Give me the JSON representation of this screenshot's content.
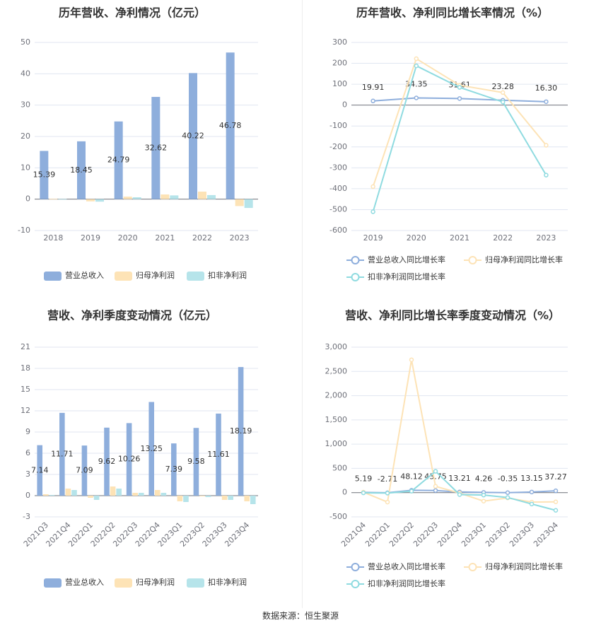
{
  "source_label": "数据来源：恒生聚源",
  "chart_data": [
    {
      "type": "bar",
      "title": "历年营收、净利情况（亿元）",
      "categories": [
        "2018",
        "2019",
        "2020",
        "2021",
        "2022",
        "2023"
      ],
      "ylim": [
        -10,
        50
      ],
      "yticks": [
        -10,
        0,
        10,
        20,
        30,
        40,
        50
      ],
      "ytick_labels": [
        "-10",
        "0",
        "10",
        "20",
        "30",
        "40",
        "50"
      ],
      "legend_position": "bottom",
      "grid": true,
      "series": [
        {
          "name": "营业总收入",
          "color": "#8eaedc",
          "values": [
            15.39,
            18.45,
            24.79,
            32.62,
            40.22,
            46.78
          ],
          "labels": [
            "15.39",
            "18.45",
            "24.79",
            "32.62",
            "40.22",
            "46.78"
          ]
        },
        {
          "name": "归母净利润",
          "color": "#fde3b6",
          "values": [
            0.1,
            -0.7,
            0.8,
            1.5,
            2.4,
            -2.2
          ]
        },
        {
          "name": "扣非净利润",
          "color": "#b6e4ea",
          "values": [
            0.05,
            -0.8,
            0.6,
            1.2,
            1.3,
            -2.8
          ]
        }
      ]
    },
    {
      "type": "line",
      "title": "历年营收、净利同比增长率情况（%）",
      "categories": [
        "2019",
        "2020",
        "2021",
        "2022",
        "2023"
      ],
      "ylim": [
        -600,
        300
      ],
      "yticks": [
        -600,
        -500,
        -400,
        -300,
        -200,
        -100,
        0,
        100,
        200,
        300
      ],
      "ytick_labels": [
        "-600",
        "-500",
        "-400",
        "-300",
        "-200",
        "-100",
        "0",
        "100",
        "200",
        "300"
      ],
      "legend_position": "bottom",
      "grid": true,
      "series": [
        {
          "name": "营业总收入同比增长率",
          "color": "#8eaedc",
          "values": [
            19.91,
            34.35,
            31.61,
            23.28,
            16.3
          ],
          "labels": [
            "19.91",
            "34.35",
            "31.61",
            "23.28",
            "16.30"
          ]
        },
        {
          "name": "归母净利润同比增长率",
          "color": "#fde3b6",
          "values": [
            -390,
            222,
            95,
            60,
            -192
          ]
        },
        {
          "name": "扣非净利润同比增长率",
          "color": "#8fdbe0",
          "values": [
            -510,
            188,
            85,
            15,
            -335
          ]
        }
      ]
    },
    {
      "type": "bar",
      "title": "营收、净利季度变动情况（亿元）",
      "categories": [
        "2021Q3",
        "2021Q4",
        "2022Q1",
        "2022Q2",
        "2022Q3",
        "2022Q4",
        "2023Q1",
        "2023Q2",
        "2023Q3",
        "2023Q4"
      ],
      "ylim": [
        -3,
        21
      ],
      "yticks": [
        -3,
        0,
        3,
        6,
        9,
        12,
        15,
        18,
        21
      ],
      "ytick_labels": [
        "-3",
        "0",
        "3",
        "6",
        "9",
        "12",
        "15",
        "18",
        "21"
      ],
      "legend_position": "bottom",
      "grid": true,
      "series": [
        {
          "name": "营业总收入",
          "color": "#8eaedc",
          "values": [
            7.14,
            11.71,
            7.09,
            9.62,
            10.26,
            13.25,
            7.39,
            9.58,
            11.61,
            18.19
          ],
          "labels": [
            "7.14",
            "11.71",
            "7.09",
            "9.62",
            "10.26",
            "13.25",
            "7.39",
            "9.58",
            "11.61",
            "18.19"
          ]
        },
        {
          "name": "归母净利润",
          "color": "#fde3b6",
          "values": [
            0.2,
            1.0,
            -0.3,
            1.3,
            0.4,
            0.8,
            -0.8,
            -0.1,
            -0.6,
            -0.8
          ]
        },
        {
          "name": "扣非净利润",
          "color": "#b6e4ea",
          "values": [
            0.1,
            0.8,
            -0.6,
            1.0,
            0.4,
            0.4,
            -0.9,
            -0.2,
            -0.6,
            -1.2
          ]
        }
      ]
    },
    {
      "type": "line",
      "title": "营收、净利同比增长率季度变动情况（%）",
      "categories": [
        "2021Q4",
        "2022Q1",
        "2022Q2",
        "2022Q3",
        "2022Q4",
        "2023Q1",
        "2023Q2",
        "2023Q3",
        "2023Q4"
      ],
      "ylim": [
        -500,
        3000
      ],
      "yticks": [
        -500,
        0,
        500,
        1000,
        1500,
        2000,
        2500,
        3000
      ],
      "ytick_labels": [
        "-500",
        "0",
        "500",
        "1,000",
        "1,500",
        "2,000",
        "2,500",
        "3,000"
      ],
      "legend_position": "bottom",
      "grid": true,
      "series": [
        {
          "name": "营业总收入同比增长率",
          "color": "#8eaedc",
          "values": [
            5.19,
            -2.71,
            48.12,
            43.75,
            13.21,
            4.26,
            -0.35,
            13.15,
            37.27
          ],
          "labels": [
            "5.19",
            "-2.71",
            "48.12",
            "43.75",
            "13.21",
            "4.26",
            "-0.35",
            "13.15",
            "37.27"
          ]
        },
        {
          "name": "归母净利润同比增长率",
          "color": "#fde3b6",
          "values": [
            10,
            -195,
            2740,
            130,
            -10,
            -175,
            -110,
            -195,
            -190
          ]
        },
        {
          "name": "扣非净利润同比增长率",
          "color": "#8fdbe0",
          "values": [
            -5,
            -10,
            30,
            440,
            -40,
            -50,
            -100,
            -235,
            -365
          ]
        }
      ]
    }
  ]
}
